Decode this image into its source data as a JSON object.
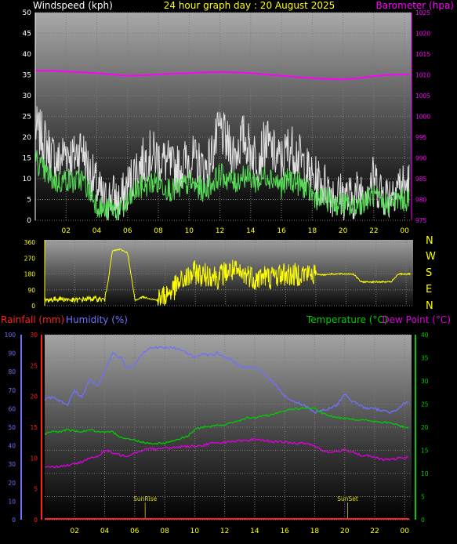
{
  "header": {
    "wind_title": "Windspeed (kph)",
    "date_title": "24 hour graph day : 20 August 2025",
    "baro_title": "Barometer (hpa)"
  },
  "lower_titles": {
    "rain": "Rainfall (mm)",
    "humidity": "Humidity (%)",
    "temperature": "Temperature (°C)",
    "dewpoint": "Dew Point (°C)"
  },
  "markers": {
    "sunrise": "SunRise",
    "sunset": "SunSet"
  },
  "compass": [
    "N",
    "W",
    "S",
    "E",
    "N"
  ],
  "colors": {
    "wind_title": "#ffffff",
    "date_title": "#ffff00",
    "baro": "#ff00ff",
    "wind_gust": "#e0e0e0",
    "wind_avg": "#55dd55",
    "direction": "#ffff00",
    "rain": "#ff2020",
    "humidity": "#7070ff",
    "temperature": "#00cc00",
    "dewpoint": "#dd00dd",
    "marker": "#aaaa00"
  },
  "chart_data": [
    {
      "type": "line",
      "name": "wind-barometer",
      "x_ticks": [
        "02",
        "04",
        "06",
        "08",
        "10",
        "12",
        "14",
        "16",
        "18",
        "20",
        "22",
        "00"
      ],
      "x_tick_hours": [
        2,
        4,
        6,
        8,
        10,
        12,
        14,
        16,
        18,
        20,
        22,
        24
      ],
      "xlim_hours": [
        0,
        24.3
      ],
      "y_left": {
        "label": "Windspeed (kph)",
        "range": [
          0,
          50
        ],
        "ticks": [
          0,
          5,
          10,
          15,
          20,
          25,
          30,
          35,
          40,
          45,
          50
        ]
      },
      "y_right": {
        "label": "Barometer (hpa)",
        "range": [
          975,
          1025
        ],
        "ticks": [
          975,
          980,
          985,
          990,
          995,
          1000,
          1005,
          1010,
          1015,
          1020,
          1025
        ]
      },
      "series": [
        {
          "name": "Barometer",
          "axis": "right",
          "x": [
            0,
            1,
            2,
            3,
            4,
            5,
            6,
            7,
            8,
            9,
            10,
            11,
            12,
            13,
            14,
            15,
            16,
            17,
            18,
            19,
            20,
            21,
            22,
            23,
            24.3
          ],
          "values": [
            1011.0,
            1011.0,
            1010.8,
            1010.6,
            1010.4,
            1010.1,
            1009.8,
            1009.9,
            1010.1,
            1010.3,
            1010.4,
            1010.6,
            1010.7,
            1010.6,
            1010.4,
            1010.1,
            1009.8,
            1009.5,
            1009.2,
            1009.0,
            1008.9,
            1009.2,
            1009.7,
            1010.0,
            1010.1
          ]
        },
        {
          "name": "Gust",
          "axis": "left",
          "x": [
            0,
            0.5,
            1,
            1.5,
            2,
            2.5,
            3,
            3.5,
            4,
            4.5,
            5,
            5.5,
            6,
            6.5,
            7,
            7.5,
            8,
            8.5,
            9,
            9.5,
            10,
            10.5,
            11,
            11.5,
            12,
            12.5,
            13,
            13.5,
            14,
            14.5,
            15,
            15.5,
            16,
            16.5,
            17,
            17.5,
            18,
            18.5,
            19,
            19.5,
            20,
            20.5,
            21,
            21.5,
            22,
            22.5,
            23,
            23.5,
            24,
            24.3
          ],
          "values": [
            22,
            20,
            16,
            14,
            17,
            15,
            18,
            12,
            8,
            4,
            6,
            4,
            8,
            12,
            14,
            16,
            15,
            14,
            12,
            13,
            15,
            14,
            12,
            16,
            22,
            18,
            16,
            20,
            17,
            15,
            19,
            16,
            14,
            18,
            16,
            13,
            10,
            9,
            8,
            6,
            6,
            5,
            7,
            8,
            10,
            7,
            6,
            9,
            8,
            9
          ]
        },
        {
          "name": "Average",
          "axis": "left",
          "x": [
            0,
            0.5,
            1,
            1.5,
            2,
            2.5,
            3,
            3.5,
            4,
            4.5,
            5,
            5.5,
            6,
            6.5,
            7,
            7.5,
            8,
            8.5,
            9,
            9.5,
            10,
            10.5,
            11,
            11.5,
            12,
            12.5,
            13,
            13.5,
            14,
            14.5,
            15,
            15.5,
            16,
            16.5,
            17,
            17.5,
            18,
            18.5,
            19,
            19.5,
            20,
            20.5,
            21,
            21.5,
            22,
            22.5,
            23,
            23.5,
            24,
            24.3
          ],
          "values": [
            15,
            12,
            10,
            9,
            10,
            9,
            10,
            7,
            4,
            2,
            3,
            2,
            4,
            7,
            8,
            9,
            9,
            8,
            7,
            8,
            9,
            8,
            7,
            9,
            11,
            10,
            9,
            11,
            10,
            9,
            11,
            10,
            8,
            10,
            9,
            8,
            6,
            5,
            5,
            4,
            4,
            3,
            4,
            5,
            6,
            4,
            4,
            5,
            5,
            5
          ]
        }
      ]
    },
    {
      "type": "line",
      "name": "wind-direction",
      "xlim_hours": [
        0,
        24.3
      ],
      "y": {
        "range": [
          0,
          360
        ],
        "ticks": [
          0,
          90,
          180,
          270,
          360
        ]
      },
      "series": [
        {
          "name": "Direction",
          "x": [
            0,
            1,
            2,
            3,
            4,
            4.5,
            5,
            5.5,
            6,
            6.5,
            7,
            7.5,
            8,
            8.5,
            9,
            9.5,
            10,
            10.5,
            11,
            11.5,
            12,
            12.5,
            13,
            13.5,
            14,
            14.5,
            15,
            15.5,
            16,
            16.5,
            17,
            17.5,
            18,
            18.5,
            19,
            19.5,
            20,
            20.5,
            21,
            21.5,
            22,
            22.5,
            23,
            23.5,
            24,
            24.3
          ],
          "values": [
            30,
            40,
            30,
            40,
            35,
            310,
            320,
            300,
            30,
            50,
            40,
            30,
            60,
            90,
            130,
            160,
            190,
            170,
            180,
            160,
            190,
            200,
            170,
            180,
            150,
            170,
            160,
            175,
            180,
            170,
            185,
            180,
            180,
            175,
            180,
            180,
            180,
            180,
            135,
            135,
            135,
            135,
            135,
            180,
            180,
            180
          ]
        }
      ]
    },
    {
      "type": "line",
      "name": "temperature-humidity-rain",
      "x_ticks": [
        "02",
        "04",
        "06",
        "08",
        "10",
        "12",
        "14",
        "16",
        "18",
        "20",
        "22",
        "00"
      ],
      "x_tick_hours": [
        2,
        4,
        6,
        8,
        10,
        12,
        14,
        16,
        18,
        20,
        22,
        24
      ],
      "xlim_hours": [
        0,
        24.3
      ],
      "y_humidity": {
        "label": "Humidity (%)",
        "range": [
          0,
          100
        ],
        "ticks": [
          0,
          10,
          20,
          30,
          40,
          50,
          60,
          70,
          80,
          90,
          100
        ]
      },
      "y_rain": {
        "label": "Rainfall (mm)",
        "range": [
          0,
          30
        ],
        "ticks": [
          0,
          5,
          10,
          15,
          20,
          25,
          30
        ]
      },
      "y_temp": {
        "label": "Temperature (°C)",
        "range": [
          0,
          40
        ],
        "ticks": [
          0,
          5,
          10,
          15,
          20,
          25,
          30,
          35,
          40
        ]
      },
      "sunrise_hour": 6.7,
      "sunset_hour": 20.2,
      "series": [
        {
          "name": "Humidity",
          "axis": "humidity",
          "x": [
            0,
            0.5,
            1,
            1.5,
            2,
            2.5,
            3,
            3.5,
            4,
            4.5,
            5,
            5.5,
            6,
            6.5,
            7,
            7.5,
            8,
            8.5,
            9,
            9.5,
            10,
            10.5,
            11,
            11.5,
            12,
            12.5,
            13,
            13.5,
            14,
            14.5,
            15,
            15.5,
            16,
            16.5,
            17,
            17.5,
            18,
            18.5,
            19,
            19.5,
            20,
            20.5,
            21,
            21.5,
            22,
            22.5,
            23,
            23.5,
            24,
            24.3
          ],
          "values": [
            65,
            66,
            64,
            62,
            70,
            66,
            76,
            72,
            80,
            90,
            88,
            82,
            84,
            90,
            93,
            93,
            93,
            93,
            92,
            90,
            88,
            90,
            89,
            90,
            88,
            86,
            83,
            82,
            82,
            80,
            76,
            72,
            67,
            64,
            63,
            61,
            58,
            59,
            60,
            62,
            68,
            64,
            62,
            60,
            60,
            59,
            58,
            60,
            63,
            64
          ]
        },
        {
          "name": "Temperature",
          "axis": "temp",
          "x": [
            0,
            0.5,
            1,
            1.5,
            2,
            2.5,
            3,
            3.5,
            4,
            4.5,
            5,
            5.5,
            6,
            6.5,
            7,
            7.5,
            8,
            8.5,
            9,
            9.5,
            10,
            10.5,
            11,
            11.5,
            12,
            12.5,
            13,
            13.5,
            14,
            14.5,
            15,
            15.5,
            16,
            16.5,
            17,
            17.5,
            18,
            18.5,
            19,
            19.5,
            20,
            20.5,
            21,
            21.5,
            22,
            22.5,
            23,
            23.5,
            24,
            24.3
          ],
          "values": [
            18.5,
            19,
            19,
            19.5,
            19.2,
            19,
            19.5,
            19,
            18.8,
            19,
            18,
            17.5,
            17.2,
            16.8,
            16.5,
            16.5,
            16.6,
            17,
            17.5,
            18,
            19.5,
            20,
            20,
            20.5,
            20.5,
            21,
            21.5,
            22,
            22,
            22.5,
            22.5,
            23,
            23.5,
            24,
            24,
            24.2,
            24,
            23,
            22.5,
            22,
            22,
            21.8,
            21.5,
            21.5,
            21.2,
            21,
            21,
            20.5,
            20,
            20
          ]
        },
        {
          "name": "Dew Point",
          "axis": "temp",
          "x": [
            0,
            0.5,
            1,
            1.5,
            2,
            2.5,
            3,
            3.5,
            4,
            4.5,
            5,
            5.5,
            6,
            6.5,
            7,
            7.5,
            8,
            8.5,
            9,
            9.5,
            10,
            10.5,
            11,
            11.5,
            12,
            12.5,
            13,
            13.5,
            14,
            14.5,
            15,
            15.5,
            16,
            16.5,
            17,
            17.5,
            18,
            18.5,
            19,
            19.5,
            20,
            20.5,
            21,
            21.5,
            22,
            22.5,
            23,
            23.5,
            24,
            24.3
          ],
          "values": [
            11.5,
            11.5,
            11.5,
            11.8,
            12,
            12.5,
            13.5,
            13.5,
            15,
            14.5,
            14,
            13.8,
            14.5,
            15,
            15.5,
            15.2,
            15.5,
            15.5,
            15.8,
            15.8,
            16,
            16,
            16.5,
            16.5,
            16.8,
            16.8,
            17,
            17,
            17.5,
            17.2,
            17,
            16.8,
            16.8,
            16.5,
            16.5,
            16.5,
            16,
            15,
            14.5,
            14.8,
            15,
            14.8,
            14,
            13.8,
            13.5,
            13,
            13,
            13.2,
            13.5,
            13.5
          ]
        },
        {
          "name": "Rainfall",
          "axis": "rain",
          "x": [
            0,
            24.3
          ],
          "values": [
            0,
            0
          ]
        }
      ]
    }
  ]
}
